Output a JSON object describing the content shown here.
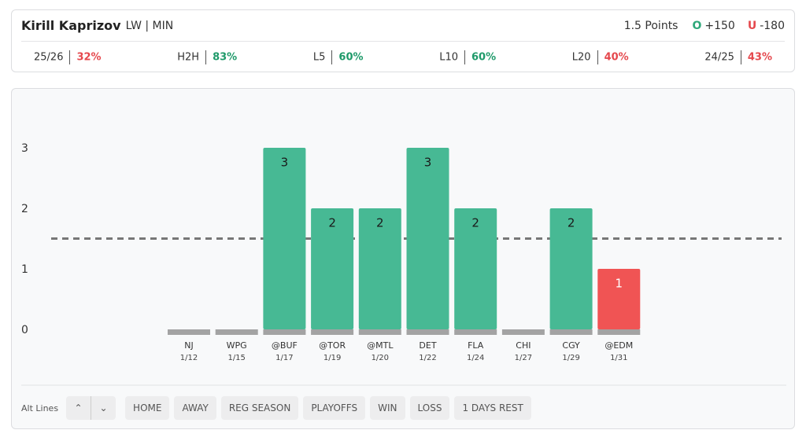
{
  "header": {
    "player": "Kirill Kaprizov",
    "position": "LW | MIN",
    "line_label": "1.5 Points",
    "over": {
      "mark": "O",
      "odds": "+150",
      "color": "#2fa87a"
    },
    "under": {
      "mark": "U",
      "odds": "-180",
      "color": "#e5484d"
    }
  },
  "stats": [
    {
      "label": "25/26",
      "value": "32%",
      "color": "#e5484d"
    },
    {
      "label": "H2H",
      "value": "83%",
      "color": "#1f9a6a"
    },
    {
      "label": "L5",
      "value": "60%",
      "color": "#1f9a6a"
    },
    {
      "label": "L10",
      "value": "60%",
      "color": "#1f9a6a"
    },
    {
      "label": "L20",
      "value": "40%",
      "color": "#e5484d"
    },
    {
      "label": "24/25",
      "value": "43%",
      "color": "#e5484d"
    }
  ],
  "chart_data": {
    "type": "bar",
    "categories": [
      "NJ",
      "WPG",
      "@BUF",
      "@TOR",
      "@MTL",
      "DET",
      "FLA",
      "CHI",
      "CGY",
      "@EDM"
    ],
    "dates": [
      "1/12",
      "1/15",
      "1/17",
      "1/19",
      "1/20",
      "1/22",
      "1/24",
      "1/27",
      "1/29",
      "1/31"
    ],
    "values": [
      0,
      0,
      3,
      2,
      2,
      3,
      2,
      0,
      2,
      1
    ],
    "line": 1.5,
    "over_color": "#47b994",
    "under_color": "#f05454",
    "ylim": [
      0,
      3
    ],
    "yticks": [
      0,
      1,
      2,
      3
    ]
  },
  "controls": {
    "label": "Alt Lines",
    "filters": [
      "HOME",
      "AWAY",
      "REG SEASON",
      "PLAYOFFS",
      "WIN",
      "LOSS",
      "1 DAYS REST"
    ]
  }
}
